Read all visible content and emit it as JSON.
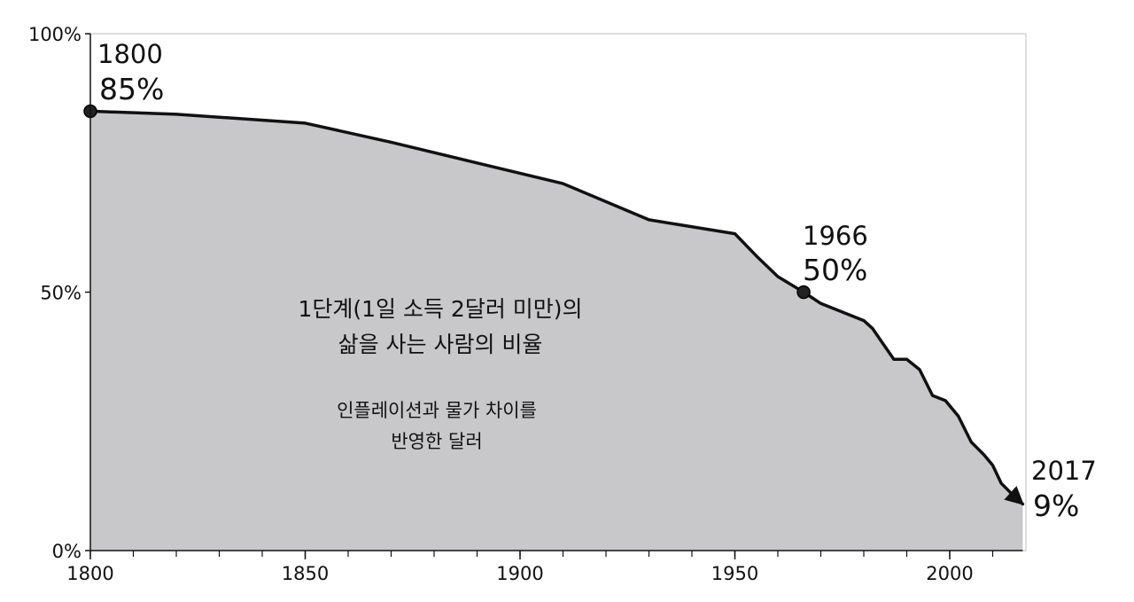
{
  "chart_data": {
    "type": "area",
    "xlim": [
      1800,
      2017
    ],
    "ylim": [
      0,
      100
    ],
    "x_ticks": [
      1800,
      1850,
      1900,
      1950,
      2000
    ],
    "x_tick_labels": [
      "1800",
      "1850",
      "1900",
      "1950",
      "2000"
    ],
    "y_ticks": [
      0,
      50,
      100
    ],
    "y_tick_labels": [
      "0%",
      "50%",
      "100%"
    ],
    "x_minor_tick_step": 10,
    "grid": false,
    "fill_color": "#c8c8ca",
    "line_color": "#111111",
    "series": [
      {
        "x": [
          1800,
          1820,
          1850,
          1870,
          1890,
          1910,
          1930,
          1950,
          1955,
          1960,
          1966,
          1970,
          1980,
          1982,
          1987,
          1990,
          1993,
          1996,
          1999,
          2002,
          2005,
          2008,
          2010,
          2012,
          2015,
          2017
        ],
        "values": [
          85,
          84.4,
          82.7,
          79,
          75,
          71,
          64,
          61.3,
          57,
          53,
          50,
          47.8,
          44.5,
          43,
          37,
          37,
          35,
          30,
          29,
          26,
          21,
          18.5,
          16.5,
          13,
          10.5,
          9
        ]
      }
    ],
    "annotations": [
      {
        "x": 1800,
        "y": 85,
        "year": "1800",
        "value": "85%",
        "marker": "dot"
      },
      {
        "x": 1966,
        "y": 50,
        "year": "1966",
        "value": "50%",
        "marker": "dot"
      },
      {
        "x": 2017,
        "y": 9,
        "year": "2017",
        "value": "9%",
        "marker": "arrow"
      }
    ],
    "area_label": {
      "title_lines": [
        "1단계(1일 소득 2달러 미만)의",
        "삶을 사는 사람의 비율"
      ],
      "note_lines": [
        "인플레이션과 물가 차이를",
        "반영한 달러"
      ]
    }
  }
}
